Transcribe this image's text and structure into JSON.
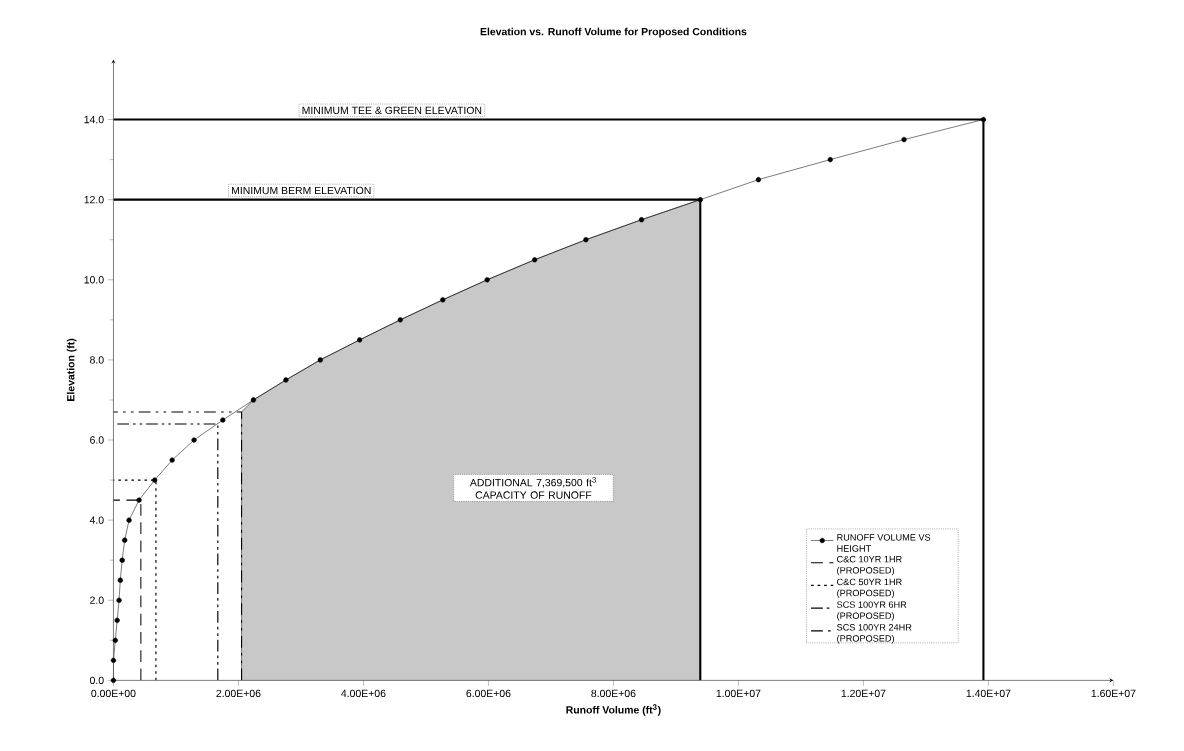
{
  "chart_data": {
    "type": "line",
    "title": "Elevation vs. Runoff Volume for Proposed Conditions",
    "xlabel": "Runoff Volume (ft$^{3}$)",
    "ylabel": "Elevation (ft)",
    "xlim": [
      0,
      16000000
    ],
    "ylim": [
      0,
      15.5
    ],
    "xticks": [
      {
        "value": 0,
        "label": "0.00E+00"
      },
      {
        "value": 2000000,
        "label": "2.00E+06"
      },
      {
        "value": 4000000,
        "label": "4.00E+06"
      },
      {
        "value": 6000000,
        "label": "6.00E+06"
      },
      {
        "value": 8000000,
        "label": "8.00E+06"
      },
      {
        "value": 10000000,
        "label": "1.00E+07"
      },
      {
        "value": 12000000,
        "label": "1.20E+07"
      },
      {
        "value": 14000000,
        "label": "1.40E+07"
      },
      {
        "value": 16000000,
        "label": "1.60E+07"
      }
    ],
    "yticks": [
      {
        "value": 0,
        "label": "0.0"
      },
      {
        "value": 2,
        "label": "2.0"
      },
      {
        "value": 4,
        "label": "4.0"
      },
      {
        "value": 6,
        "label": "6.0"
      },
      {
        "value": 8,
        "label": "8.0"
      },
      {
        "value": 10,
        "label": "10.0"
      },
      {
        "value": 12,
        "label": "12.0"
      },
      {
        "value": 14,
        "label": "14.0"
      }
    ],
    "legend": "bottom right",
    "series": [
      {
        "type": "area",
        "color": "#c8c8c8",
        "x": [
          2050000,
          2240000,
          2760000,
          3310000,
          3940000,
          4590000,
          5270000,
          5980000,
          6740000,
          7560000,
          8450000,
          9390000
        ],
        "values": [
          6.7,
          7.0,
          7.5,
          8.0,
          8.5,
          9.0,
          9.5,
          10.0,
          10.5,
          11.0,
          11.5,
          12.0
        ]
      },
      {
        "name": "RUNOFF VOLUME VS HEIGHT",
        "color": "#000000",
        "marker": "circle",
        "line_style": "solid",
        "x": [
          0,
          0,
          30000,
          60000,
          90000,
          110000,
          140000,
          180000,
          250000,
          410000,
          660000,
          940000,
          1290000,
          1750000,
          2240000,
          2760000,
          3310000,
          3940000,
          4590000,
          5270000,
          5980000,
          6740000,
          7560000,
          8450000,
          9390000,
          10320000,
          11470000,
          12650000,
          13920000
        ],
        "values": [
          0,
          0.5,
          1.0,
          1.5,
          2.0,
          2.5,
          3.0,
          3.5,
          4.0,
          4.5,
          5.0,
          5.5,
          6.0,
          6.5,
          7.0,
          7.5,
          8.0,
          8.5,
          9.0,
          9.5,
          10.0,
          10.5,
          11.0,
          11.5,
          12.0,
          12.5,
          13.0,
          13.5,
          14.0
        ]
      },
      {
        "name": "C&C 10YR 1HR (PROPOSED)",
        "color": "#000000",
        "line_style": "dashed",
        "x": [
          440000,
          440000,
          0
        ],
        "values": [
          0,
          4.5,
          4.5
        ]
      },
      {
        "name": "C&C 50YR 1HR (PROPOSED)",
        "color": "#000000",
        "line_style": "dotted",
        "x": [
          680000,
          680000,
          0
        ],
        "values": [
          0,
          5.0,
          5.0
        ]
      },
      {
        "name": "SCS 100YR 6HR (PROPOSED)",
        "color": "#000000",
        "line_style": "dashdot",
        "x": [
          1670000,
          1670000,
          0
        ],
        "values": [
          0,
          6.4,
          6.4
        ]
      },
      {
        "name": "SCS 100YR 24HR (PROPOSED)",
        "color": "#000000",
        "line_style": "dashdotdot",
        "x": [
          2050000,
          2050000,
          0
        ],
        "values": [
          0,
          6.7,
          6.7
        ]
      },
      {
        "name": "MINIMUM BERM ELEVATION",
        "color": "#000000",
        "line_style": "solid",
        "x": [
          9390000,
          9390000,
          0
        ],
        "values": [
          0,
          12,
          12
        ]
      },
      {
        "name": "MINIMUM TEE & GREEN ELEVATION",
        "color": "#000000",
        "line_style": "solid",
        "x": [
          13920000,
          13920000,
          0
        ],
        "values": [
          0,
          14,
          14
        ]
      }
    ],
    "annotations": [
      "ADDITIONAL 7,369,500 ft$^{3}$ CAPACITY OF RUNOFF"
    ]
  }
}
